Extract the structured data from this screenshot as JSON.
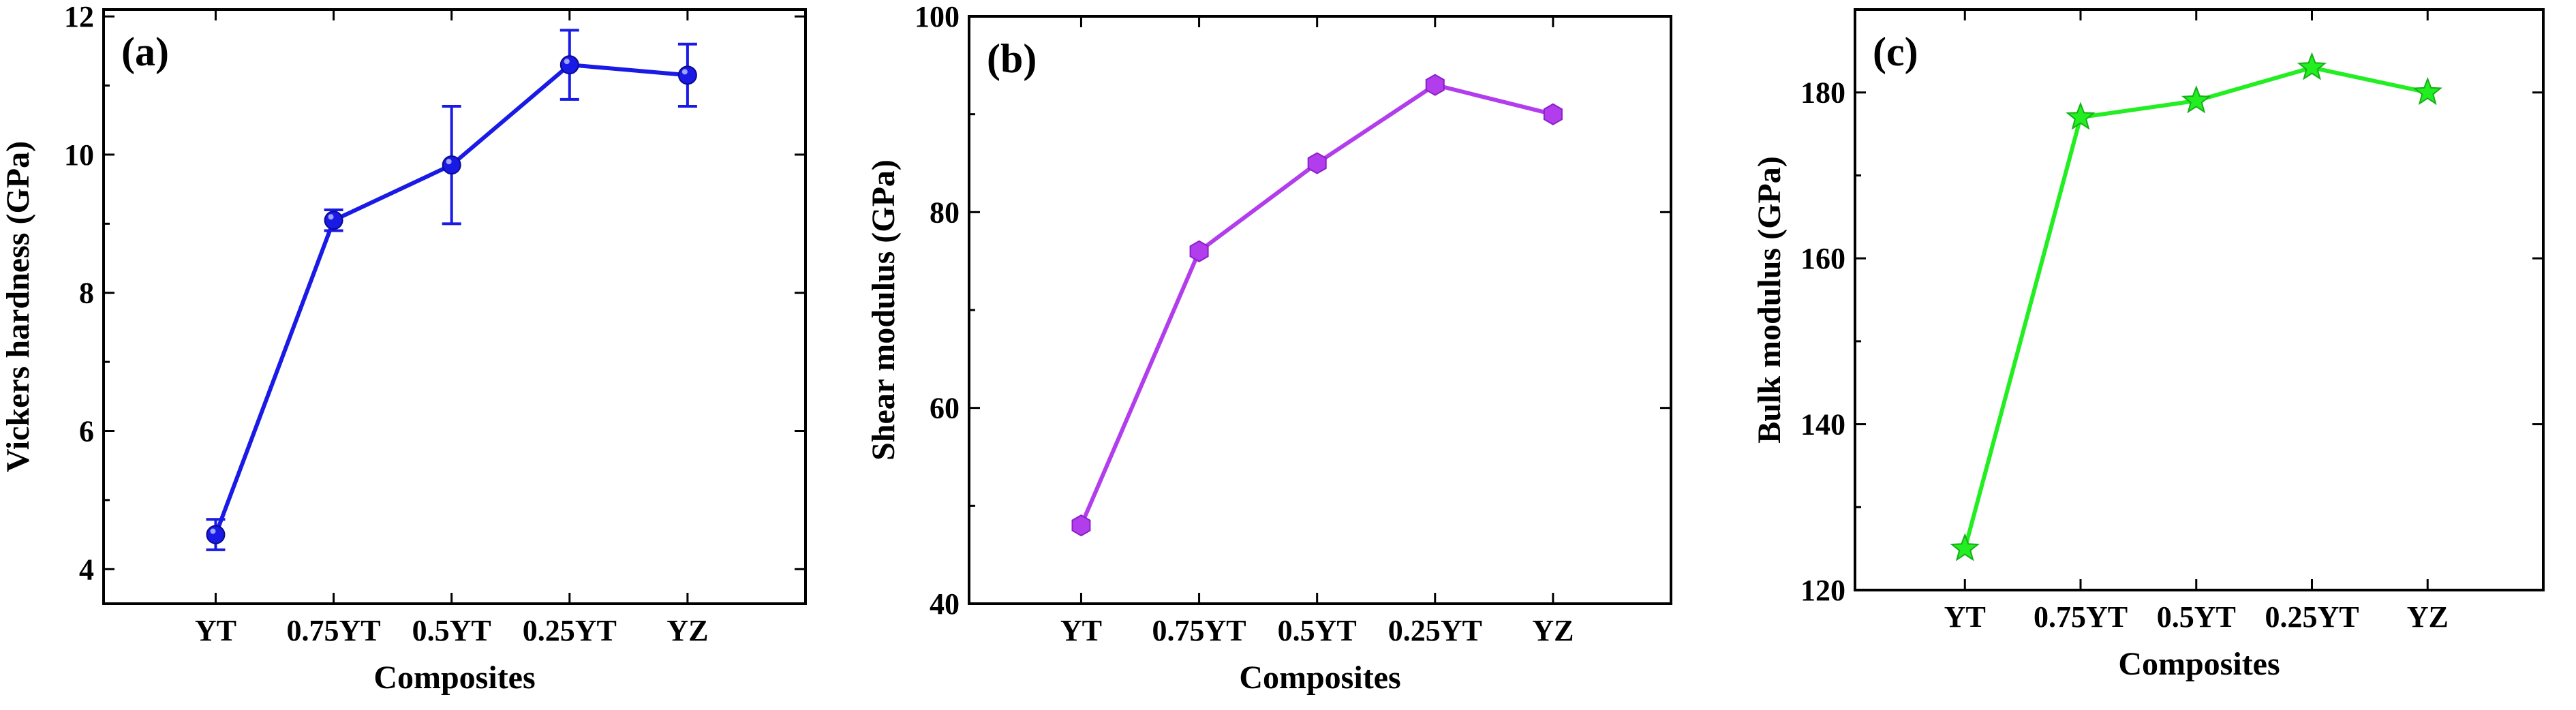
{
  "colors": {
    "axis": "#000000",
    "background": "#ffffff"
  },
  "chart_data": [
    {
      "type": "line",
      "panel_label": "(a)",
      "title": "",
      "xlabel": "Composites",
      "ylabel": "Vickers hardness (GPa)",
      "categories": [
        "YT",
        "0.75YT",
        "0.5YT",
        "0.25YT",
        "YZ"
      ],
      "series": [
        {
          "name": "Vickers hardness",
          "values": [
            4.5,
            9.05,
            9.85,
            11.3,
            11.15
          ],
          "errors": [
            0.22,
            0.15,
            0.85,
            0.5,
            0.45
          ],
          "color": "#1a1ae6",
          "marker": "circle"
        }
      ],
      "ylim": [
        3.5,
        12.1
      ],
      "yticks": [
        4,
        6,
        8,
        10,
        12
      ],
      "grid": false
    },
    {
      "type": "line",
      "panel_label": "(b)",
      "title": "",
      "xlabel": "Composites",
      "ylabel": "Shear modulus (GPa)",
      "categories": [
        "YT",
        "0.75YT",
        "0.5YT",
        "0.25YT",
        "YZ"
      ],
      "series": [
        {
          "name": "Shear modulus",
          "values": [
            48,
            76,
            85,
            93,
            90
          ],
          "color": "#b23ded",
          "marker": "hexagon"
        }
      ],
      "ylim": [
        40,
        100
      ],
      "yticks": [
        40,
        60,
        80,
        100
      ],
      "grid": false
    },
    {
      "type": "line",
      "panel_label": "(c)",
      "title": "",
      "xlabel": "Composites",
      "ylabel": "Bulk modulus (GPa)",
      "categories": [
        "YT",
        "0.75YT",
        "0.5YT",
        "0.25YT",
        "YZ"
      ],
      "series": [
        {
          "name": "Bulk modulus",
          "values": [
            125,
            177,
            179,
            183,
            180
          ],
          "color": "#22ee22",
          "marker": "star"
        }
      ],
      "ylim": [
        120,
        190
      ],
      "yticks": [
        120,
        140,
        160,
        180
      ],
      "grid": false
    }
  ]
}
